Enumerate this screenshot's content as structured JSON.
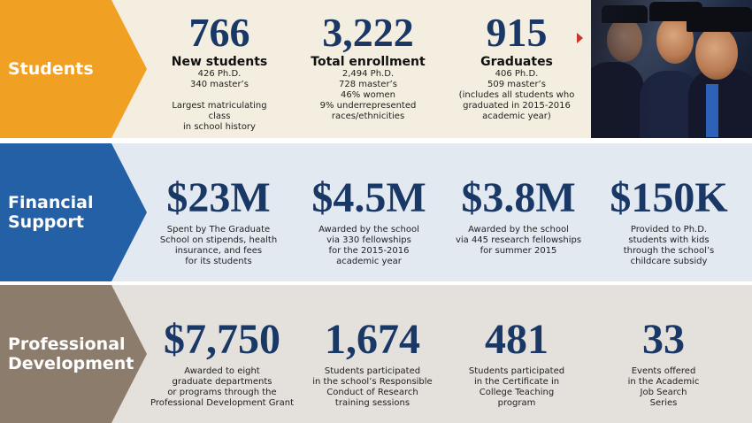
{
  "sections": [
    {
      "label": "Students",
      "stats": [
        {
          "value": "766",
          "heading": "New students",
          "description": "426 Ph.D.\n340 master’s\n\nLargest matriculating class\nin school history"
        },
        {
          "value": "3,222",
          "heading": "Total enrollment",
          "description": "2,494 Ph.D.\n728 master’s\n46% women\n9% underrepresented\nraces/ethnicities"
        },
        {
          "value": "915",
          "heading": "Graduates",
          "description": "406 Ph.D.\n509 master’s\n(includes all students who\ngraduated in 2015-2016\nacademic year)"
        }
      ]
    },
    {
      "label": "Financial\nSupport",
      "stats": [
        {
          "value": "$23M",
          "description": "Spent by The Graduate\nSchool on stipends, health\ninsurance, and fees\nfor its students"
        },
        {
          "value": "$4.5M",
          "description": "Awarded by the school\nvia 330 fellowships\nfor the 2015-2016\nacademic year"
        },
        {
          "value": "$3.8M",
          "description": "Awarded by the school\nvia 445 research fellowships\nfor summer 2015"
        },
        {
          "value": "$150K",
          "description": "Provided to Ph.D.\nstudents with kids\nthrough the school’s\nchildcare subsidy"
        }
      ]
    },
    {
      "label": "Professional\nDevelopment",
      "stats": [
        {
          "value": "$7,750",
          "description": "Awarded to eight\ngraduate departments\nor programs through the\nProfessional Development Grant"
        },
        {
          "value": "1,674",
          "description": "Students participated\nin the school’s Responsible\nConduct of Research\ntraining sessions"
        },
        {
          "value": "481",
          "description": "Students participated\nin the Certificate in\nCollege Teaching\nprogram"
        },
        {
          "value": "33",
          "description": "Events offered\nin the Academic\nJob Search\nSeries"
        }
      ]
    }
  ],
  "colors": {
    "students_accent": "#f0a023",
    "financial_accent": "#2360a6",
    "professional_accent": "#8c7c6c",
    "figure_navy": "#1a3866",
    "play_arrow_red": "#c7362b"
  },
  "icons": {
    "photo": "graduates-photo",
    "more": "play-arrow-icon"
  }
}
